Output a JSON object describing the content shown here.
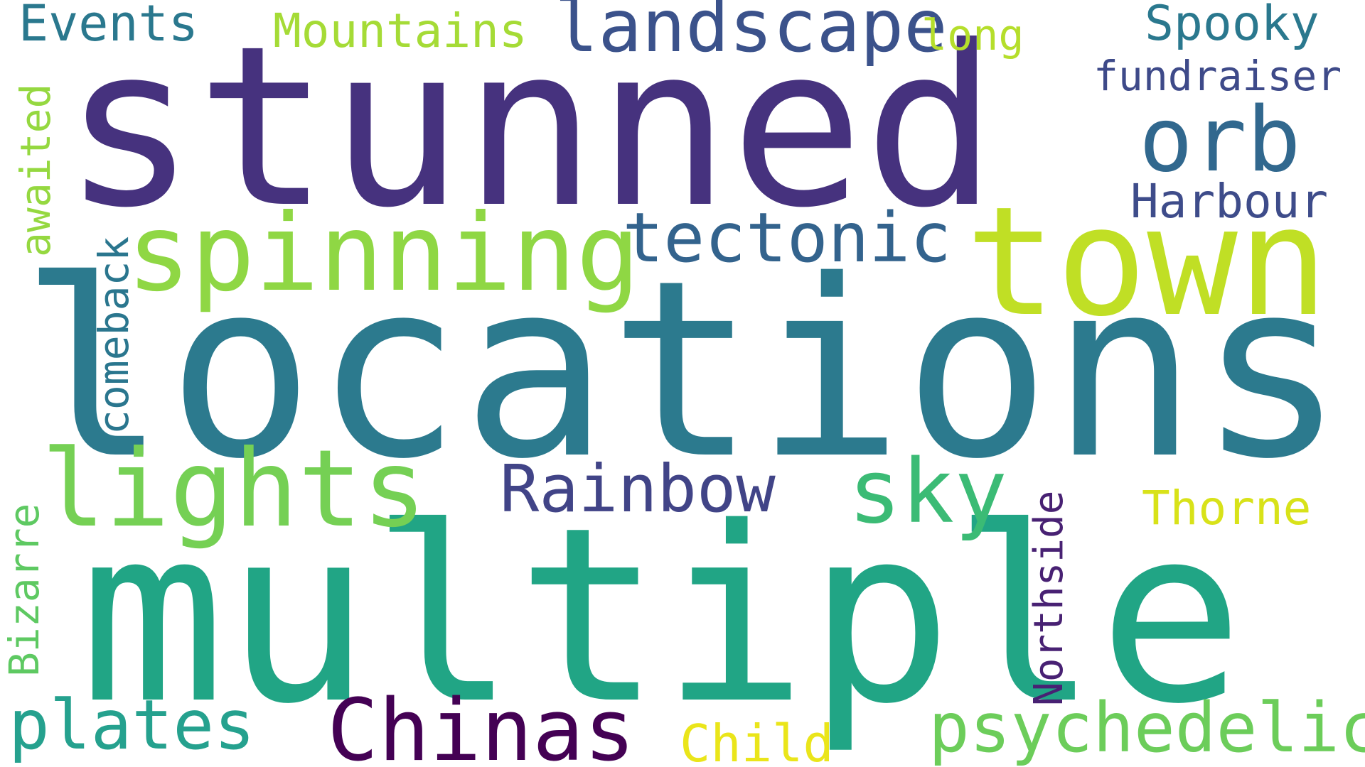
{
  "colors": {
    "background": "#ffffff"
  },
  "words": [
    {
      "id": "stunned",
      "text": "stunned",
      "color": "#46327e"
    },
    {
      "id": "locations",
      "text": "locations",
      "color": "#2c7a8e"
    },
    {
      "id": "multiple",
      "text": "multiple",
      "color": "#21a585"
    },
    {
      "id": "town",
      "text": "town",
      "color": "#c0df25"
    },
    {
      "id": "spinning",
      "text": "spinning",
      "color": "#8fd744"
    },
    {
      "id": "lights",
      "text": "lights",
      "color": "#75d054"
    },
    {
      "id": "landscape",
      "text": "landscape",
      "color": "#3b528b"
    },
    {
      "id": "orb",
      "text": "orb",
      "color": "#31688e"
    },
    {
      "id": "tectonic",
      "text": "tectonic",
      "color": "#33638d"
    },
    {
      "id": "sky",
      "text": "sky",
      "color": "#3bbb75"
    },
    {
      "id": "rainbow",
      "text": "Rainbow",
      "color": "#414487"
    },
    {
      "id": "chinas",
      "text": "Chinas",
      "color": "#440154"
    },
    {
      "id": "psychedelic",
      "text": "psychedelic",
      "color": "#6ccd5a"
    },
    {
      "id": "plates",
      "text": "plates",
      "color": "#25a18e"
    },
    {
      "id": "events",
      "text": "Events",
      "color": "#2a788e"
    },
    {
      "id": "mountains",
      "text": "Mountains",
      "color": "#a5db36"
    },
    {
      "id": "long",
      "text": "long",
      "color": "#b5de2b"
    },
    {
      "id": "spooky",
      "text": "Spooky",
      "color": "#2a788e"
    },
    {
      "id": "fundraiser",
      "text": "fundraiser",
      "color": "#3e4a89"
    },
    {
      "id": "harbour",
      "text": "Harbour",
      "color": "#3e4c8a"
    },
    {
      "id": "thorne",
      "text": "Thorne",
      "color": "#d8e219"
    },
    {
      "id": "child",
      "text": "Child",
      "color": "#eae51a"
    },
    {
      "id": "awaited",
      "text": "awaited",
      "color": "#95d840"
    },
    {
      "id": "comeback",
      "text": "comeback",
      "color": "#2a768e"
    },
    {
      "id": "bizarre",
      "text": "Bizarre",
      "color": "#5ec962"
    },
    {
      "id": "northside",
      "text": "Northside",
      "color": "#482173"
    }
  ]
}
